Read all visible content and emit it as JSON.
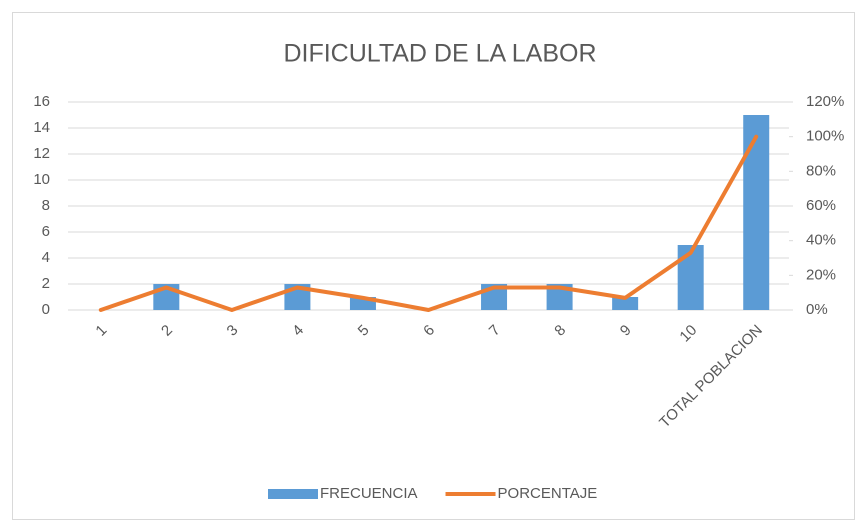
{
  "chart_data": {
    "type": "bar",
    "title": "DIFICULTAD DE LA LABOR",
    "categories": [
      "1",
      "2",
      "3",
      "4",
      "5",
      "6",
      "7",
      "8",
      "9",
      "10",
      "TOTAL POBLACION"
    ],
    "series": [
      {
        "name": "FRECUENCIA",
        "type": "bar",
        "color": "#5b9bd5",
        "values": [
          0,
          2,
          0,
          2,
          1,
          0,
          2,
          2,
          1,
          5,
          15
        ]
      },
      {
        "name": "PORCENTAJE",
        "type": "line",
        "axis": "y2",
        "color": "#ed7d31",
        "values": [
          0,
          13,
          0,
          13,
          7,
          0,
          13,
          13,
          7,
          33,
          100
        ]
      }
    ],
    "ylim": [
      0,
      16
    ],
    "yticks": [
      0,
      2,
      4,
      6,
      8,
      10,
      12,
      14,
      16
    ],
    "y2lim": [
      0,
      120
    ],
    "y2ticks": [
      {
        "value": 0,
        "label": "0%"
      },
      {
        "value": 20,
        "label": "20%"
      },
      {
        "value": 40,
        "label": "40%"
      },
      {
        "value": 60,
        "label": "60%"
      },
      {
        "value": 80,
        "label": "80%"
      },
      {
        "value": 100,
        "label": "100%"
      },
      {
        "value": 120,
        "label": "120%"
      }
    ],
    "grid": true,
    "legend": "bottom"
  }
}
